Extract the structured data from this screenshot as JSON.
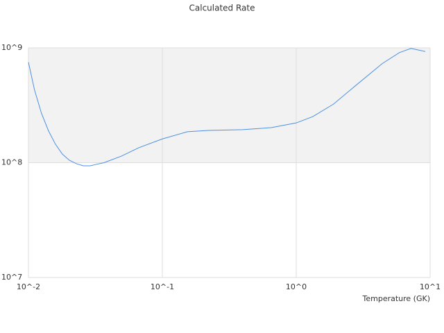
{
  "chart_data": {
    "type": "line",
    "title": "Calculated Rate",
    "x_label": "Temperature (GK)",
    "x": [
      0.01,
      0.0111,
      0.0125,
      0.0141,
      0.0159,
      0.0179,
      0.0202,
      0.0228,
      0.0257,
      0.0289,
      0.0325,
      0.0367,
      0.0494,
      0.0667,
      0.1,
      0.154,
      0.22,
      0.4,
      0.65,
      1,
      1.33,
      1.9,
      2.72,
      4.39,
      5.9,
      7.2,
      9.2
    ],
    "series": [
      {
        "color": "#4a90e2",
        "values": [
          750000000,
          430000000,
          270000000,
          190000000,
          145000000,
          119000000,
          105000000,
          98000000,
          94000000,
          94000000,
          97000000,
          100000000,
          114000000,
          135000000,
          161000000,
          186000000,
          191000000,
          194000000,
          202000000,
          222000000,
          252000000,
          324000000,
          460000000,
          730000000,
          910000000,
          990000000,
          930000000
        ]
      }
    ],
    "xlim": [
      0.01,
      10
    ],
    "ylim": [
      10000000,
      1000000000
    ],
    "xticks": [
      {
        "value": 0.01,
        "label": "10^-2"
      },
      {
        "value": 0.1,
        "label": "10^-1"
      },
      {
        "value": 1,
        "label": "10^0"
      },
      {
        "value": 10,
        "label": "10^1"
      }
    ],
    "yticks": [
      {
        "value": 10000000,
        "label": "10^7"
      },
      {
        "value": 100000000,
        "label": "10^8"
      },
      {
        "value": 1000000000,
        "label": "10^9"
      }
    ],
    "xscale": "log",
    "yscale": "log",
    "grid": true,
    "band_color": "#f2f2f2"
  }
}
